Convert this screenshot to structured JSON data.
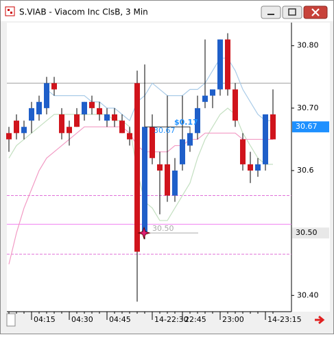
{
  "window": {
    "title": "S.VIAB - Viacom Inc ClsB, 3 Min"
  },
  "chart_data": {
    "type": "candlestick",
    "categories": [
      null,
      null,
      null,
      "04:15",
      null,
      null,
      null,
      null,
      "04:30",
      null,
      null,
      null,
      null,
      "04:45",
      null,
      null,
      null,
      null,
      null,
      "14-22:30",
      null,
      null,
      null,
      "22:45",
      null,
      null,
      null,
      null,
      "23:00",
      null,
      null,
      null,
      null,
      null,
      "14-23:15",
      null
    ],
    "open": [
      30.66,
      30.68,
      30.66,
      30.68,
      30.69,
      30.7,
      30.74,
      30.69,
      30.67,
      30.69,
      30.69,
      30.71,
      30.7,
      30.68,
      30.69,
      30.68,
      30.66,
      30.74,
      30.5,
      30.67,
      30.61,
      30.61,
      30.56,
      30.61,
      30.64,
      30.66,
      30.71,
      30.72,
      30.73,
      30.81,
      30.73,
      30.65,
      30.61,
      30.6,
      30.61,
      30.69
    ],
    "high": [
      30.67,
      30.69,
      30.68,
      30.71,
      30.72,
      30.75,
      30.75,
      30.7,
      30.68,
      30.7,
      30.71,
      30.72,
      30.71,
      30.7,
      30.7,
      30.69,
      30.67,
      30.76,
      30.77,
      30.69,
      30.63,
      30.72,
      30.62,
      30.72,
      30.67,
      30.72,
      30.81,
      30.73,
      30.81,
      30.82,
      30.74,
      30.66,
      30.63,
      30.62,
      30.69,
      30.73
    ],
    "low": [
      30.63,
      30.65,
      30.65,
      30.66,
      30.68,
      30.69,
      30.72,
      30.65,
      30.64,
      30.67,
      30.68,
      30.69,
      30.68,
      30.67,
      30.67,
      30.66,
      30.64,
      30.39,
      30.49,
      30.61,
      30.53,
      30.55,
      30.55,
      30.6,
      30.63,
      30.65,
      30.7,
      30.7,
      30.72,
      30.72,
      30.67,
      30.6,
      30.58,
      30.59,
      30.6,
      30.65
    ],
    "close": [
      30.65,
      30.66,
      30.67,
      30.7,
      30.71,
      30.74,
      30.73,
      30.66,
      30.66,
      30.67,
      30.71,
      30.7,
      30.69,
      30.69,
      30.68,
      30.66,
      30.65,
      30.47,
      30.67,
      30.62,
      30.6,
      30.56,
      30.6,
      30.65,
      30.66,
      30.7,
      30.72,
      30.73,
      30.81,
      30.73,
      30.68,
      30.61,
      30.6,
      30.61,
      30.69,
      30.65
    ],
    "up_color": "#1f5fc9",
    "down_color": "#d0141c",
    "overlays": [
      {
        "color": "#a9cbe8",
        "values": [
          null,
          null,
          null,
          null,
          null,
          30.73,
          30.72,
          30.72,
          30.72,
          30.72,
          30.72,
          30.71,
          30.71,
          30.7,
          30.7,
          30.69,
          30.68,
          30.71,
          30.72,
          30.74,
          30.73,
          30.72,
          30.72,
          30.72,
          30.73,
          30.73,
          30.74,
          30.76,
          30.78,
          30.78,
          30.76,
          30.73,
          30.71,
          30.69,
          30.68,
          30.68
        ]
      },
      {
        "color": "#c3dfc0",
        "values": [
          30.62,
          30.64,
          30.65,
          30.66,
          30.67,
          30.68,
          30.69,
          30.69,
          30.69,
          30.69,
          30.69,
          30.69,
          30.69,
          30.69,
          30.68,
          30.68,
          30.67,
          30.6,
          30.55,
          30.54,
          30.52,
          30.52,
          30.54,
          30.56,
          30.58,
          30.62,
          30.65,
          30.67,
          30.69,
          30.7,
          30.69,
          30.66,
          30.64,
          30.62,
          30.61,
          30.61
        ]
      },
      {
        "color": "#f29ac4",
        "values": [
          30.45,
          30.5,
          30.54,
          30.57,
          30.6,
          30.62,
          30.63,
          30.64,
          30.65,
          30.66,
          30.67,
          30.67,
          30.67,
          30.67,
          30.67,
          30.67,
          30.66,
          30.64,
          30.63,
          30.63,
          30.63,
          30.63,
          30.64,
          30.64,
          30.65,
          30.65,
          30.66,
          30.66,
          30.66,
          30.66,
          30.66,
          30.65,
          30.65,
          30.65,
          30.65,
          30.65
        ]
      }
    ],
    "levels": [
      {
        "value": 30.74,
        "color": "#a0a0a0",
        "style": "solid"
      },
      {
        "value": 30.56,
        "color": "#e070d8",
        "style": "dashed"
      },
      {
        "value": 30.514,
        "color": "#f080f0",
        "style": "solid"
      },
      {
        "value": 30.466,
        "color": "#e070d8",
        "style": "dashed"
      }
    ],
    "ylim": [
      30.374,
      30.837
    ],
    "yticks": [
      {
        "value": 30.4,
        "label": "30.40"
      },
      30.6,
      {
        "value": 30.7,
        "label": "30.70"
      },
      {
        "value": 30.8,
        "label": "30.80"
      }
    ],
    "price_markers": [
      {
        "value": 30.67,
        "label": "30.67",
        "color": "#1e90ff"
      },
      {
        "value": 30.5,
        "label": "30.50",
        "color": "#e8e8e8"
      }
    ],
    "annotations": [
      "$0.17",
      "30.67",
      "30.50"
    ]
  }
}
